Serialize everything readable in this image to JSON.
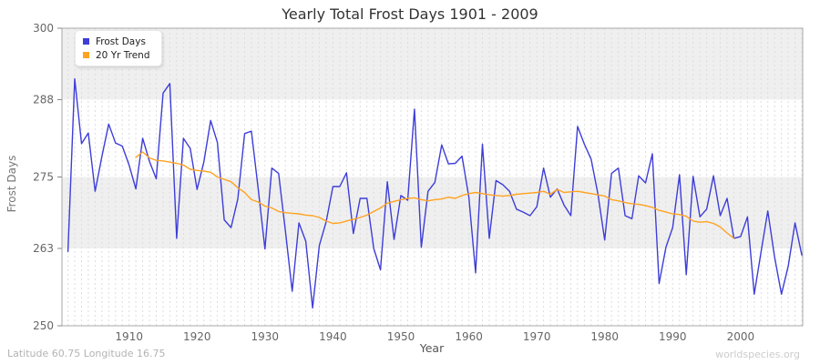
{
  "title": "Yearly Total Frost Days 1901 - 2009",
  "footer": {
    "left": "Latitude 60.75 Longitude 16.75",
    "right": "worldspecies.org"
  },
  "legend": {
    "items": [
      {
        "label": "Frost Days",
        "color": "#3d3dd9"
      },
      {
        "label": "20 Yr Trend",
        "color": "#ffa321"
      }
    ]
  },
  "chart_data": {
    "type": "line",
    "title": "Yearly Total Frost Days 1901 - 2009",
    "xlabel": "Year",
    "ylabel": "Frost Days",
    "xlim": [
      1900.12,
      2009.13
    ],
    "ylim": [
      250,
      300
    ],
    "yticks": [
      250,
      263,
      275,
      288,
      300
    ],
    "xticks": [
      1910,
      1920,
      1930,
      1940,
      1950,
      1960,
      1970,
      1980,
      1990,
      2000
    ],
    "bands": [
      [
        288,
        300
      ],
      [
        263,
        275
      ]
    ],
    "band_color": "#efefef",
    "grid": "vertical-dashed-yearly",
    "legend_position": "top-left",
    "series": [
      {
        "name": "Frost Days",
        "color": "#3d3dd9",
        "x_start": 1901,
        "values": [
          262.5,
          291.5,
          280.6,
          282.4,
          272.6,
          278.5,
          283.9,
          280.7,
          280.2,
          277.0,
          273.0,
          281.5,
          277.6,
          274.7,
          289.1,
          290.7,
          264.7,
          281.5,
          279.8,
          272.9,
          277.5,
          284.5,
          280.8,
          267.8,
          266.5,
          271.3,
          282.3,
          282.7,
          273.0,
          262.9,
          276.5,
          275.6,
          266.0,
          255.8,
          267.3,
          264.2,
          253.0,
          263.5,
          267.5,
          273.4,
          273.4,
          275.7,
          265.5,
          271.4,
          271.4,
          263.0,
          259.4,
          274.2,
          264.5,
          271.9,
          271.1,
          286.4,
          263.2,
          272.6,
          274.1,
          280.4,
          277.2,
          277.3,
          278.5,
          271.6,
          258.9,
          280.5,
          264.7,
          274.4,
          273.7,
          272.6,
          269.6,
          269.1,
          268.5,
          270.0,
          276.5,
          271.6,
          273.0,
          270.3,
          268.5,
          283.5,
          280.5,
          278.0,
          272.1,
          264.4,
          275.6,
          276.5,
          268.5,
          268.0,
          275.2,
          274.0,
          278.9,
          257.1,
          263.2,
          266.5,
          275.4,
          258.6,
          275.1,
          268.3,
          269.6,
          275.2,
          268.5,
          271.4,
          264.7,
          265.0,
          268.3,
          255.3,
          262.4,
          269.3,
          261.5,
          255.3,
          260.0,
          267.3,
          261.9
        ]
      },
      {
        "name": "20 Yr Trend",
        "color": "#ffa321",
        "x_start": 1911,
        "values": [
          278.3,
          279.2,
          278.2,
          277.8,
          277.7,
          277.5,
          277.3,
          277.0,
          276.3,
          276.1,
          276.0,
          275.8,
          275.0,
          274.6,
          274.2,
          273.2,
          272.4,
          271.2,
          270.8,
          270.1,
          269.8,
          269.2,
          269.0,
          268.9,
          268.8,
          268.6,
          268.5,
          268.2,
          267.6,
          267.2,
          267.3,
          267.6,
          267.9,
          268.2,
          268.6,
          269.2,
          269.8,
          270.6,
          270.9,
          271.2,
          271.4,
          271.5,
          271.2,
          271.0,
          271.2,
          271.3,
          271.6,
          271.4,
          271.9,
          272.2,
          272.4,
          272.2,
          272.0,
          271.9,
          271.8,
          271.9,
          272.1,
          272.2,
          272.3,
          272.4,
          272.6,
          272.1,
          272.9,
          272.4,
          272.5,
          272.6,
          272.4,
          272.2,
          272.0,
          271.8,
          271.2,
          271.0,
          270.7,
          270.5,
          270.4,
          270.2,
          269.9,
          269.4,
          269.1,
          268.8,
          268.7,
          268.4,
          267.6,
          267.4,
          267.5,
          267.2,
          266.6,
          265.6,
          264.7
        ]
      }
    ]
  }
}
